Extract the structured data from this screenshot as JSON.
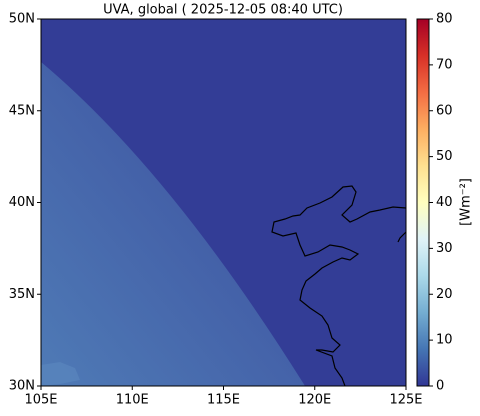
{
  "chart_data": {
    "type": "map",
    "title": "UVA, global ( 2025-12-05 08:40 UTC)",
    "xlim": [
      105,
      125
    ],
    "ylim": [
      30,
      50
    ],
    "xticks": [
      {
        "value": 105,
        "label": "105E"
      },
      {
        "value": 110,
        "label": "110E"
      },
      {
        "value": 115,
        "label": "115E"
      },
      {
        "value": 120,
        "label": "120E"
      },
      {
        "value": 125,
        "label": "125E"
      }
    ],
    "yticks": [
      {
        "value": 30,
        "label": "30N"
      },
      {
        "value": 35,
        "label": "35N"
      },
      {
        "value": 40,
        "label": "40N"
      },
      {
        "value": 45,
        "label": "45N"
      },
      {
        "value": 50,
        "label": "50N"
      }
    ],
    "colorbar": {
      "label": "[Wm⁻²]",
      "lim": [
        0,
        80
      ],
      "ticks": [
        0,
        10,
        20,
        30,
        40,
        50,
        60,
        70,
        80
      ],
      "colormap": [
        "#313695",
        "#4575b4",
        "#74add1",
        "#abd9e9",
        "#e0f3f8",
        "#ffffbf",
        "#fee090",
        "#fdae61",
        "#f46d43",
        "#d73027",
        "#a50026"
      ]
    }
  }
}
